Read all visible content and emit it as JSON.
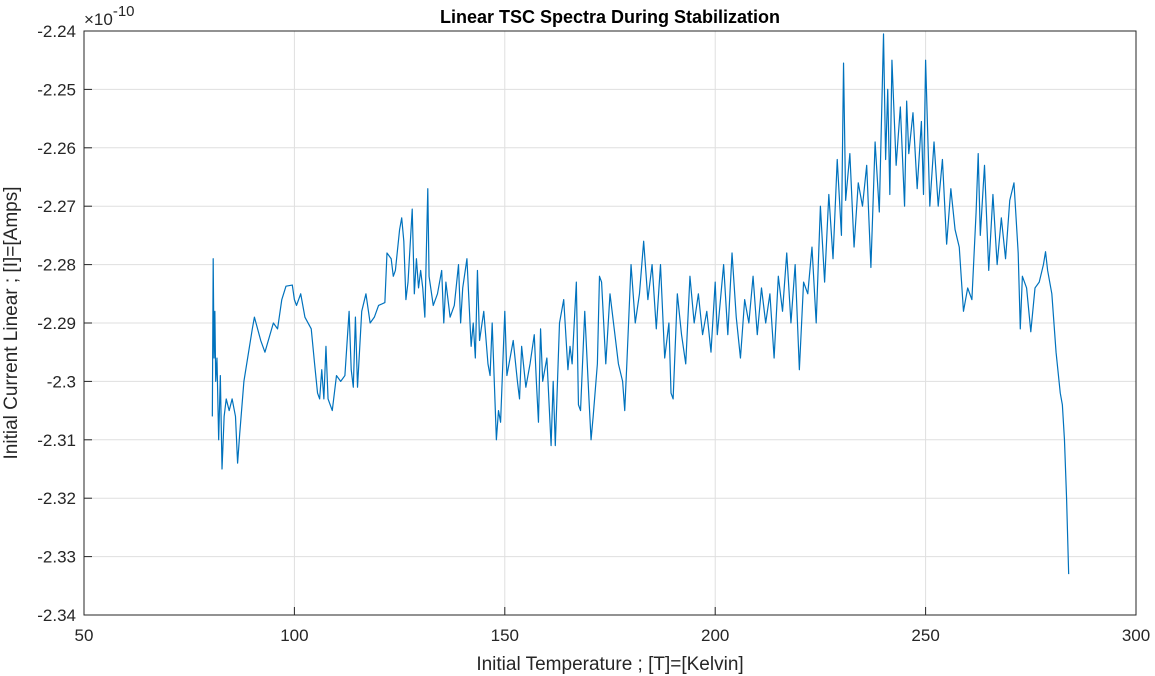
{
  "chart_data": {
    "type": "line",
    "title": "Linear TSC Spectra During Stabilization",
    "x_label": "Initial Temperature ; [T]=[Kelvin]",
    "y_label": "Initial Current Linear ; [I]=[Amps]",
    "y_multiplier": {
      "base": "×10",
      "exponent": "-10"
    },
    "color": "#0072bd",
    "grid": true,
    "xlim": [
      50,
      300
    ],
    "xticks": [
      50,
      100,
      150,
      200,
      250,
      300
    ],
    "ylim": [
      -2.34,
      -2.24
    ],
    "yticks": [
      -2.24,
      -2.25,
      -2.26,
      -2.27,
      -2.28,
      -2.29,
      -2.3,
      -2.31,
      -2.32,
      -2.33,
      -2.34
    ],
    "x": [
      80.5,
      80.7,
      80.9,
      81.1,
      81.3,
      81.6,
      82,
      82.4,
      82.8,
      83.3,
      83.8,
      84.5,
      85.2,
      86,
      86.5,
      87,
      88,
      90,
      90.5,
      92,
      93,
      95,
      96,
      97,
      98,
      99.5,
      100,
      100.5,
      101.5,
      102.5,
      104,
      104.8,
      105.5,
      106,
      106.5,
      107,
      107.5,
      108,
      109,
      110,
      111,
      112,
      113,
      113.5,
      114,
      114.5,
      115,
      116,
      117,
      118,
      119,
      120,
      121.5,
      122,
      123,
      123.5,
      124,
      125,
      125.5,
      126,
      126.5,
      127,
      128,
      128.5,
      129,
      129.5,
      130,
      130.5,
      131,
      131.7,
      132,
      133,
      134,
      135,
      135.5,
      136,
      137,
      138,
      139,
      139.5,
      140,
      141,
      142,
      142.5,
      143,
      143.5,
      144,
      145,
      146,
      146.5,
      147,
      147.5,
      148,
      148.5,
      149,
      150,
      150.5,
      151,
      152,
      153,
      153.5,
      154,
      155,
      156,
      157,
      157.5,
      158,
      158.5,
      159,
      160,
      161,
      161.5,
      162,
      163,
      164,
      165,
      165.5,
      166,
      167,
      167.5,
      168,
      169,
      170,
      170.5,
      171,
      172,
      172.5,
      173,
      174,
      175,
      176,
      177,
      178,
      178.5,
      179,
      180,
      181,
      182,
      183,
      184,
      185,
      186,
      187,
      188,
      189,
      189.5,
      190,
      191,
      192,
      193,
      194,
      195,
      196,
      197,
      198,
      199,
      200,
      200.5,
      201,
      202,
      203,
      204,
      205,
      206,
      207,
      208,
      209,
      210,
      211,
      212,
      213,
      214,
      215,
      216,
      217,
      218,
      219,
      220,
      221,
      222,
      223,
      224,
      225,
      226,
      227,
      228,
      229,
      230,
      230.5,
      231,
      232,
      233,
      234,
      235,
      236,
      237,
      238,
      239,
      240,
      240.5,
      241,
      241.5,
      242,
      243,
      244,
      245,
      245.5,
      246,
      247,
      248,
      249,
      249.5,
      250,
      251,
      252,
      253,
      254,
      255,
      256,
      257,
      258,
      259,
      260,
      261,
      262,
      262.5,
      263,
      264,
      265,
      266,
      267,
      268,
      269,
      270,
      271,
      272,
      272.5,
      273,
      274,
      275,
      276,
      277,
      278,
      278.5,
      279,
      280,
      281,
      282,
      282.5,
      283,
      283.5,
      284
    ],
    "values": [
      -2.306,
      -2.279,
      -2.296,
      -2.288,
      -2.3,
      -2.296,
      -2.31,
      -2.299,
      -2.315,
      -2.306,
      -2.303,
      -2.305,
      -2.303,
      -2.306,
      -2.314,
      -2.309,
      -2.3,
      -2.291,
      -2.289,
      -2.293,
      -2.295,
      -2.29,
      -2.291,
      -2.286,
      -2.2837,
      -2.2835,
      -2.286,
      -2.287,
      -2.285,
      -2.289,
      -2.291,
      -2.297,
      -2.302,
      -2.303,
      -2.298,
      -2.303,
      -2.294,
      -2.303,
      -2.305,
      -2.299,
      -2.3,
      -2.299,
      -2.288,
      -2.298,
      -2.301,
      -2.289,
      -2.301,
      -2.288,
      -2.285,
      -2.29,
      -2.289,
      -2.287,
      -2.2865,
      -2.278,
      -2.279,
      -2.282,
      -2.281,
      -2.274,
      -2.272,
      -2.276,
      -2.286,
      -2.283,
      -2.2705,
      -2.285,
      -2.279,
      -2.284,
      -2.281,
      -2.284,
      -2.289,
      -2.267,
      -2.282,
      -2.287,
      -2.285,
      -2.281,
      -2.29,
      -2.283,
      -2.289,
      -2.287,
      -2.28,
      -2.29,
      -2.284,
      -2.279,
      -2.294,
      -2.29,
      -2.296,
      -2.281,
      -2.293,
      -2.288,
      -2.297,
      -2.299,
      -2.29,
      -2.3,
      -2.31,
      -2.305,
      -2.307,
      -2.288,
      -2.299,
      -2.297,
      -2.293,
      -2.3,
      -2.303,
      -2.294,
      -2.301,
      -2.297,
      -2.292,
      -2.3,
      -2.307,
      -2.291,
      -2.3,
      -2.296,
      -2.311,
      -2.3,
      -2.311,
      -2.29,
      -2.286,
      -2.298,
      -2.294,
      -2.297,
      -2.283,
      -2.304,
      -2.305,
      -2.288,
      -2.303,
      -2.31,
      -2.306,
      -2.297,
      -2.282,
      -2.283,
      -2.297,
      -2.285,
      -2.291,
      -2.297,
      -2.3,
      -2.305,
      -2.297,
      -2.28,
      -2.29,
      -2.285,
      -2.276,
      -2.286,
      -2.28,
      -2.291,
      -2.28,
      -2.296,
      -2.29,
      -2.302,
      -2.303,
      -2.285,
      -2.292,
      -2.297,
      -2.282,
      -2.29,
      -2.285,
      -2.292,
      -2.288,
      -2.295,
      -2.283,
      -2.292,
      -2.288,
      -2.28,
      -2.292,
      -2.278,
      -2.289,
      -2.296,
      -2.286,
      -2.29,
      -2.282,
      -2.292,
      -2.284,
      -2.29,
      -2.285,
      -2.296,
      -2.282,
      -2.288,
      -2.278,
      -2.29,
      -2.28,
      -2.298,
      -2.283,
      -2.285,
      -2.277,
      -2.29,
      -2.27,
      -2.283,
      -2.268,
      -2.279,
      -2.262,
      -2.275,
      -2.2455,
      -2.269,
      -2.261,
      -2.277,
      -2.266,
      -2.27,
      -2.263,
      -2.2805,
      -2.259,
      -2.271,
      -2.2405,
      -2.262,
      -2.25,
      -2.268,
      -2.245,
      -2.263,
      -2.253,
      -2.27,
      -2.252,
      -2.261,
      -2.254,
      -2.267,
      -2.2555,
      -2.268,
      -2.245,
      -2.27,
      -2.259,
      -2.27,
      -2.262,
      -2.2765,
      -2.267,
      -2.274,
      -2.277,
      -2.288,
      -2.284,
      -2.286,
      -2.271,
      -2.261,
      -2.275,
      -2.263,
      -2.281,
      -2.268,
      -2.28,
      -2.272,
      -2.279,
      -2.269,
      -2.266,
      -2.278,
      -2.291,
      -2.282,
      -2.284,
      -2.2915,
      -2.284,
      -2.283,
      -2.28,
      -2.2778,
      -2.281,
      -2.285,
      -2.295,
      -2.302,
      -2.304,
      -2.31,
      -2.32,
      -2.333
    ]
  }
}
